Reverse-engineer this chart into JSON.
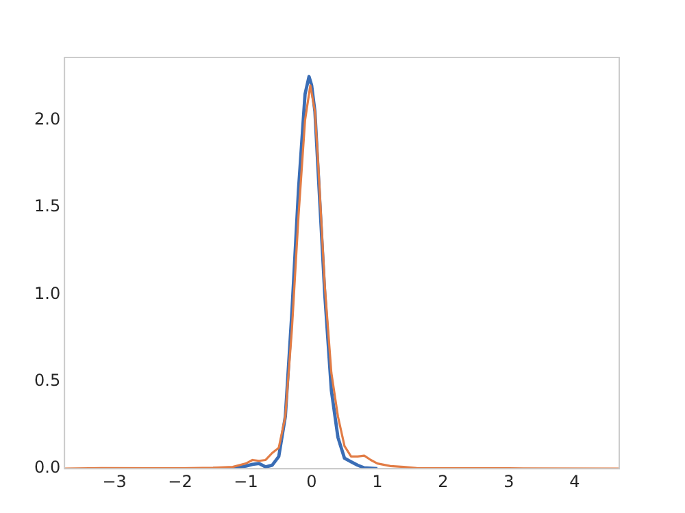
{
  "chart_data": {
    "type": "line",
    "xlim": [
      -3.76,
      4.68
    ],
    "ylim": [
      0,
      2.36
    ],
    "xticks": [
      {
        "value": -3,
        "label": "−3"
      },
      {
        "value": -2,
        "label": "−2"
      },
      {
        "value": -1,
        "label": "−1"
      },
      0,
      1,
      2,
      3,
      4
    ],
    "yticks": [
      {
        "value": 0,
        "label": "0.0"
      },
      {
        "value": 0.5,
        "label": "0.5"
      },
      {
        "value": 1,
        "label": "1.0"
      },
      {
        "value": 1.5,
        "label": "1.5"
      },
      {
        "value": 2,
        "label": "2.0"
      }
    ],
    "grid": false,
    "legend": false,
    "marker": "none",
    "line_style": "solid",
    "series": [
      {
        "color": "#3a6db5",
        "x": [
          -1.5,
          -1.2,
          -1.0,
          -0.9,
          -0.8,
          -0.7,
          -0.6,
          -0.5,
          -0.4,
          -0.3,
          -0.2,
          -0.1,
          -0.04,
          0.0,
          0.05,
          0.1,
          0.2,
          0.3,
          0.4,
          0.5,
          0.6,
          0.7,
          0.8,
          1.0
        ],
        "values": [
          0,
          0.003,
          0.015,
          0.025,
          0.03,
          0.01,
          0.02,
          0.07,
          0.3,
          0.9,
          1.6,
          2.15,
          2.25,
          2.2,
          2.05,
          1.7,
          1.0,
          0.45,
          0.18,
          0.06,
          0.04,
          0.02,
          0.005,
          0
        ]
      },
      {
        "color": "#e27c45",
        "x": [
          -3.76,
          -3.2,
          -2.0,
          -1.5,
          -1.2,
          -1.0,
          -0.9,
          -0.8,
          -0.7,
          -0.6,
          -0.5,
          -0.4,
          -0.3,
          -0.2,
          -0.1,
          -0.02,
          0.05,
          0.1,
          0.2,
          0.3,
          0.4,
          0.5,
          0.6,
          0.7,
          0.8,
          0.9,
          1.0,
          1.2,
          1.4,
          1.6,
          2.0,
          3.0,
          4.68
        ],
        "values": [
          0,
          0.003,
          0.002,
          0.005,
          0.01,
          0.03,
          0.05,
          0.045,
          0.05,
          0.09,
          0.12,
          0.3,
          0.8,
          1.45,
          2.0,
          2.2,
          2.05,
          1.75,
          1.05,
          0.55,
          0.3,
          0.13,
          0.07,
          0.07,
          0.075,
          0.05,
          0.03,
          0.015,
          0.01,
          0.003,
          0.002,
          0.002,
          0
        ]
      }
    ]
  }
}
